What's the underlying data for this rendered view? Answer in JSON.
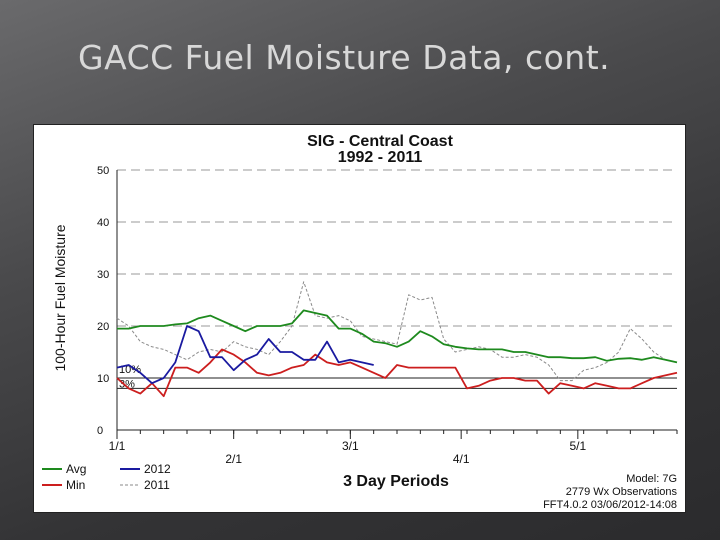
{
  "slide": {
    "title": "GACC Fuel Moisture Data, cont."
  },
  "chart_data": {
    "type": "line",
    "title": "SIG - Central Coast",
    "subtitle": "1992 - 2011",
    "ylabel": "100-Hour Fuel Moisture",
    "xlabel": "3 Day Periods",
    "ylim": [
      0,
      50
    ],
    "yticks": [
      0,
      10,
      20,
      30,
      40,
      50
    ],
    "ytick_labels": [
      "0",
      "10",
      "20",
      "30",
      "40",
      "50"
    ],
    "xlim": [
      0,
      48
    ],
    "xticks": [
      {
        "x": 0,
        "label": "1/1",
        "row": 1
      },
      {
        "x": 10,
        "label": "2/1",
        "row": 2
      },
      {
        "x": 20,
        "label": "3/1",
        "row": 1
      },
      {
        "x": 29.5,
        "label": "4/1",
        "row": 2
      },
      {
        "x": 39.5,
        "label": "5/1",
        "row": 1
      }
    ],
    "grid": "dashed horizontal at 20, 30, 40, 50",
    "reference_lines": [
      {
        "value": 10,
        "label": "10%"
      },
      {
        "value": 8,
        "label": "3%"
      }
    ],
    "series": [
      {
        "name": "Avg",
        "color": "#1e8a1e",
        "x": [
          0,
          1,
          2,
          3,
          4,
          5,
          6,
          7,
          8,
          9,
          10,
          11,
          12,
          13,
          14,
          15,
          16,
          17,
          18,
          19,
          20,
          21,
          22,
          23,
          24,
          25,
          26,
          27,
          28,
          29,
          30,
          31,
          32,
          33,
          34,
          35,
          36,
          37,
          38,
          39,
          40,
          41,
          42,
          43,
          44,
          45,
          46,
          47,
          48
        ],
        "values": [
          19.5,
          19.5,
          20,
          20,
          20,
          20.3,
          20.5,
          21.5,
          22,
          21,
          20,
          19,
          20,
          20,
          20,
          20.5,
          23,
          22.5,
          22,
          19.5,
          19.5,
          18.5,
          17,
          16.7,
          16,
          17,
          19,
          18,
          16.5,
          16,
          15.7,
          15.5,
          15.5,
          15.5,
          15,
          15,
          14.5,
          14,
          14,
          13.8,
          13.8,
          14,
          13.3,
          13.7,
          13.8,
          13.5,
          14,
          13.5,
          13
        ]
      },
      {
        "name": "2012",
        "color": "#1a1aa0",
        "x": [
          0,
          1,
          2,
          3,
          4,
          5,
          6,
          7,
          8,
          9,
          10,
          11,
          12,
          13,
          14,
          15,
          16,
          17,
          18,
          19,
          20,
          21,
          22
        ],
        "values": [
          12,
          12.5,
          11,
          9,
          10,
          13,
          20,
          19,
          14,
          14,
          11.5,
          13.5,
          14.5,
          17.5,
          15,
          15,
          13.5,
          13.5,
          17,
          13,
          13.5,
          13,
          12.5
        ]
      },
      {
        "name": "Min",
        "color": "#cc1e1e",
        "x": [
          0,
          1,
          2,
          3,
          4,
          5,
          6,
          7,
          8,
          9,
          10,
          11,
          12,
          13,
          14,
          15,
          16,
          17,
          18,
          19,
          20,
          21,
          22,
          23,
          24,
          25,
          26,
          27,
          28,
          29,
          30,
          31,
          32,
          33,
          34,
          35,
          36,
          37,
          38,
          39,
          40,
          41,
          42,
          43,
          44,
          45,
          46,
          47,
          48
        ],
        "values": [
          10,
          8,
          7,
          9,
          6.5,
          12,
          12,
          11,
          13,
          15.5,
          14.5,
          13,
          11,
          10.5,
          11,
          12,
          12.5,
          14.5,
          13,
          12.5,
          13,
          12,
          11,
          10,
          12.5,
          12,
          12,
          12,
          12,
          12,
          8,
          8.5,
          9.5,
          10,
          10,
          9.5,
          9.5,
          7,
          9,
          8.5,
          8,
          9,
          8.5,
          8,
          8,
          9,
          10,
          10.5,
          11
        ]
      },
      {
        "name": "2011",
        "color": "#8a8a8a",
        "dashed": true,
        "x": [
          0,
          1,
          2,
          3,
          4,
          5,
          6,
          7,
          8,
          9,
          10,
          11,
          12,
          13,
          14,
          15,
          16,
          17,
          18,
          19,
          20,
          21,
          22,
          23,
          24,
          25,
          26,
          27,
          28,
          29,
          30,
          31,
          32,
          33,
          34,
          35,
          36,
          37,
          38,
          39,
          40,
          41,
          42,
          43,
          44,
          45,
          46,
          47,
          48
        ],
        "values": [
          21.5,
          20,
          17,
          16,
          15.5,
          14.5,
          13.5,
          15,
          15.5,
          15,
          17,
          16,
          15.5,
          14.5,
          17,
          20,
          28.5,
          22,
          21.5,
          22,
          21,
          18,
          17.5,
          17,
          16.5,
          26,
          25,
          25.5,
          17.5,
          15,
          15.5,
          16,
          15.5,
          14,
          14,
          14.5,
          14,
          12.5,
          9.5,
          9.5,
          11.5,
          12,
          13,
          15,
          19.5,
          17.5,
          15,
          13.5,
          13
        ]
      }
    ],
    "legend": {
      "placement": "bottom-left",
      "entries": [
        {
          "label": "Avg",
          "color": "#1e8a1e"
        },
        {
          "label": "2012",
          "color": "#1a1aa0"
        },
        {
          "label": "Min",
          "color": "#cc1e1e"
        },
        {
          "label": "2011",
          "color": "#8a8a8a",
          "dashed": true
        }
      ]
    },
    "footnotes": [
      "Model: 7G",
      "2779 Wx Observations",
      "FFT4.0.2 03/06/2012-14:08"
    ]
  }
}
